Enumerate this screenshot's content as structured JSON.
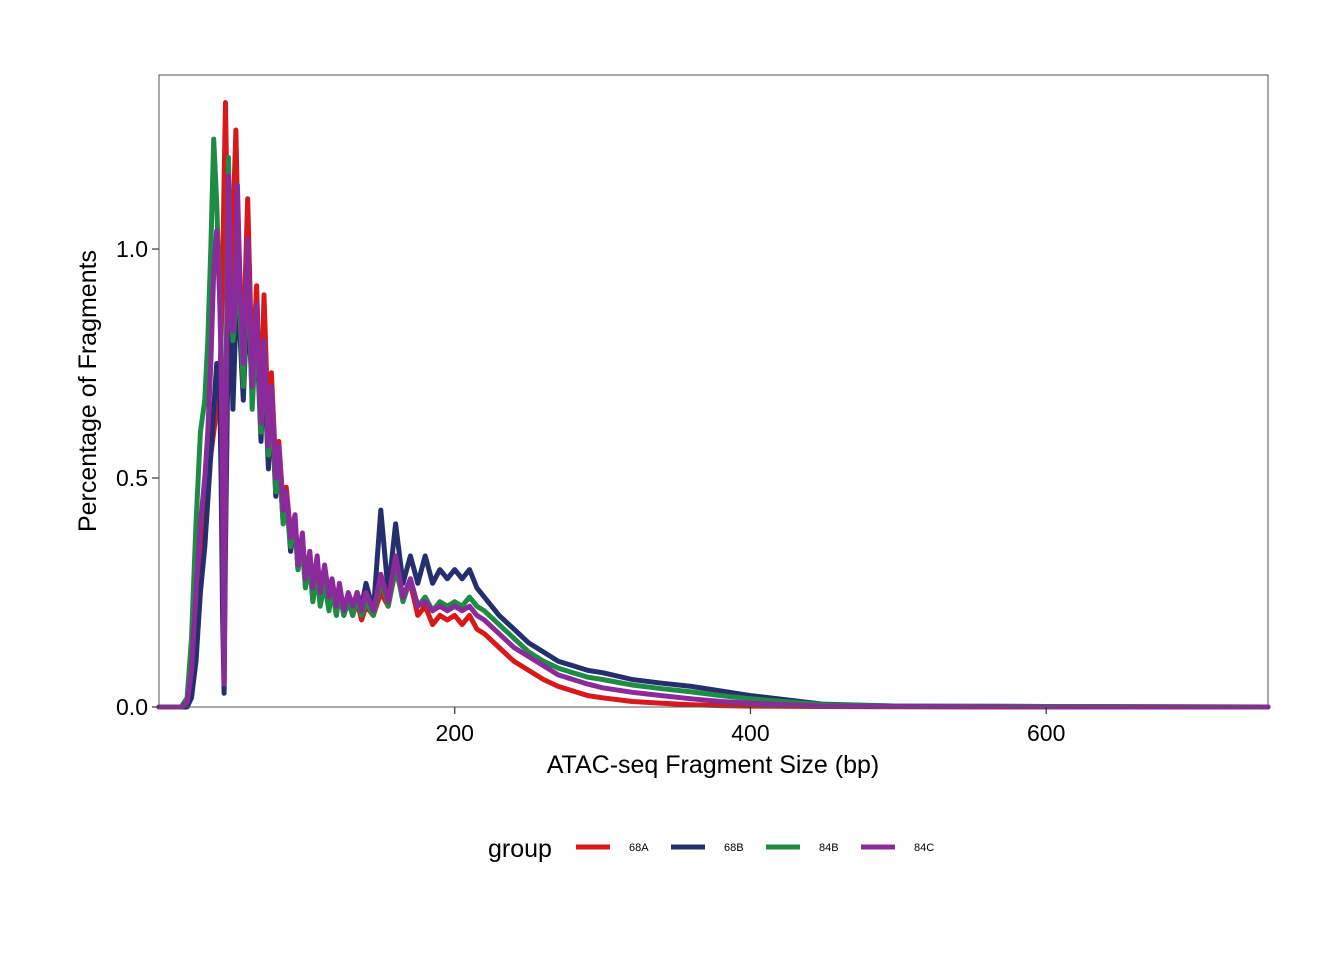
{
  "chart_data": {
    "type": "line",
    "title": "",
    "xlabel": "ATAC-seq Fragment Size (bp)",
    "ylabel": "Percentage of Fragments",
    "xlim": [
      0,
      750
    ],
    "ylim": [
      0,
      1.38
    ],
    "xticks": [
      200,
      400,
      600
    ],
    "xtick_labels": [
      "200",
      "400",
      "600"
    ],
    "yticks": [
      0.0,
      0.5,
      1.0
    ],
    "ytick_labels": [
      "0.0",
      "0.5",
      "1.0"
    ],
    "grid": false,
    "legend": {
      "title": "group",
      "position": "bottom"
    },
    "series": [
      {
        "name": "68A",
        "color": "#D7191C",
        "x": [
          0,
          15,
          19,
          22,
          25,
          28,
          31,
          33,
          35,
          37,
          39,
          41,
          42,
          43,
          44,
          45,
          46,
          47,
          48,
          49,
          50,
          52,
          53,
          55,
          57,
          58,
          60,
          63,
          66,
          69,
          71,
          74,
          76,
          79,
          81,
          84,
          86,
          89,
          92,
          94,
          97,
          99,
          102,
          104,
          107,
          109,
          112,
          115,
          117,
          120,
          122,
          125,
          128,
          131,
          134,
          137,
          140,
          145,
          150,
          155,
          160,
          165,
          170,
          175,
          180,
          185,
          190,
          195,
          200,
          205,
          210,
          215,
          220,
          230,
          240,
          250,
          260,
          270,
          280,
          290,
          300,
          320,
          340,
          360,
          380,
          400,
          450,
          500,
          600,
          750
        ],
        "y": [
          0,
          0,
          0.01,
          0.06,
          0.2,
          0.35,
          0.45,
          0.5,
          0.55,
          0.6,
          0.65,
          0.7,
          0.8,
          0.95,
          1.15,
          1.32,
          1.1,
          0.9,
          0.82,
          0.9,
          1.05,
          1.26,
          1.1,
          0.9,
          0.8,
          0.9,
          1.11,
          0.72,
          0.92,
          0.62,
          0.9,
          0.6,
          0.73,
          0.52,
          0.58,
          0.44,
          0.48,
          0.38,
          0.41,
          0.32,
          0.36,
          0.28,
          0.33,
          0.25,
          0.3,
          0.23,
          0.27,
          0.22,
          0.26,
          0.2,
          0.26,
          0.21,
          0.24,
          0.2,
          0.23,
          0.19,
          0.22,
          0.2,
          0.25,
          0.22,
          0.3,
          0.24,
          0.27,
          0.2,
          0.22,
          0.18,
          0.2,
          0.19,
          0.2,
          0.18,
          0.2,
          0.17,
          0.16,
          0.13,
          0.1,
          0.08,
          0.06,
          0.045,
          0.035,
          0.025,
          0.02,
          0.012,
          0.008,
          0.005,
          0.003,
          0.002,
          0.001,
          0.0005,
          0,
          0
        ]
      },
      {
        "name": "68B",
        "color": "#262F6E",
        "x": [
          0,
          15,
          19,
          22,
          25,
          28,
          31,
          33,
          35,
          37,
          39,
          41,
          42,
          43,
          44,
          45,
          46,
          47,
          48,
          49,
          50,
          52,
          53,
          55,
          57,
          58,
          60,
          63,
          66,
          69,
          71,
          74,
          76,
          79,
          81,
          84,
          86,
          89,
          92,
          94,
          97,
          99,
          102,
          104,
          107,
          109,
          112,
          115,
          117,
          120,
          122,
          125,
          128,
          131,
          134,
          137,
          140,
          145,
          150,
          155,
          160,
          165,
          170,
          175,
          180,
          185,
          190,
          195,
          200,
          205,
          210,
          215,
          220,
          230,
          240,
          250,
          260,
          270,
          280,
          290,
          300,
          320,
          340,
          360,
          380,
          400,
          450,
          500,
          600,
          750
        ],
        "y": [
          0,
          0,
          0,
          0.02,
          0.1,
          0.25,
          0.35,
          0.45,
          0.55,
          0.65,
          0.75,
          0.7,
          0.5,
          0.2,
          0.03,
          0.35,
          0.6,
          0.85,
          0.92,
          0.8,
          0.65,
          0.85,
          0.93,
          0.8,
          0.67,
          0.75,
          0.9,
          0.68,
          0.82,
          0.58,
          0.75,
          0.52,
          0.66,
          0.46,
          0.56,
          0.4,
          0.47,
          0.34,
          0.4,
          0.3,
          0.36,
          0.27,
          0.33,
          0.25,
          0.3,
          0.24,
          0.29,
          0.22,
          0.27,
          0.21,
          0.26,
          0.2,
          0.24,
          0.2,
          0.25,
          0.22,
          0.27,
          0.21,
          0.43,
          0.25,
          0.4,
          0.27,
          0.33,
          0.27,
          0.33,
          0.27,
          0.3,
          0.28,
          0.3,
          0.28,
          0.3,
          0.26,
          0.24,
          0.2,
          0.17,
          0.14,
          0.12,
          0.1,
          0.09,
          0.08,
          0.075,
          0.06,
          0.052,
          0.045,
          0.035,
          0.025,
          0.006,
          0.002,
          0.001,
          0
        ]
      },
      {
        "name": "84B",
        "color": "#1E8C45",
        "x": [
          0,
          15,
          19,
          22,
          25,
          28,
          31,
          33,
          35,
          37,
          39,
          41,
          42,
          43,
          44,
          45,
          46,
          47,
          48,
          49,
          50,
          52,
          53,
          55,
          57,
          58,
          60,
          63,
          66,
          69,
          71,
          74,
          76,
          79,
          81,
          84,
          86,
          89,
          92,
          94,
          97,
          99,
          102,
          104,
          107,
          109,
          112,
          115,
          117,
          120,
          122,
          125,
          128,
          131,
          134,
          137,
          140,
          145,
          150,
          155,
          160,
          165,
          170,
          175,
          180,
          185,
          190,
          195,
          200,
          205,
          210,
          215,
          220,
          230,
          240,
          250,
          260,
          270,
          280,
          290,
          300,
          320,
          340,
          360,
          380,
          400,
          450,
          500,
          600,
          750
        ],
        "y": [
          0,
          0,
          0.02,
          0.15,
          0.4,
          0.6,
          0.67,
          0.8,
          1.0,
          1.24,
          1.1,
          0.9,
          0.8,
          0.5,
          0.05,
          0.6,
          0.9,
          1.2,
          1.0,
          0.85,
          0.8,
          0.88,
          1.06,
          0.85,
          0.7,
          0.8,
          1.0,
          0.65,
          0.85,
          0.6,
          0.8,
          0.55,
          0.67,
          0.47,
          0.55,
          0.4,
          0.46,
          0.35,
          0.4,
          0.3,
          0.35,
          0.26,
          0.31,
          0.23,
          0.29,
          0.22,
          0.27,
          0.21,
          0.26,
          0.2,
          0.25,
          0.2,
          0.23,
          0.2,
          0.24,
          0.2,
          0.23,
          0.2,
          0.28,
          0.22,
          0.31,
          0.23,
          0.28,
          0.22,
          0.24,
          0.21,
          0.23,
          0.22,
          0.23,
          0.22,
          0.24,
          0.22,
          0.21,
          0.18,
          0.15,
          0.12,
          0.1,
          0.085,
          0.075,
          0.065,
          0.06,
          0.048,
          0.04,
          0.033,
          0.025,
          0.018,
          0.005,
          0.002,
          0.001,
          0
        ]
      },
      {
        "name": "84C",
        "color": "#8B2A9B",
        "x": [
          0,
          15,
          19,
          22,
          25,
          28,
          31,
          33,
          35,
          37,
          39,
          41,
          42,
          43,
          44,
          45,
          46,
          47,
          48,
          49,
          50,
          52,
          53,
          55,
          57,
          58,
          60,
          63,
          66,
          69,
          71,
          74,
          76,
          79,
          81,
          84,
          86,
          89,
          92,
          94,
          97,
          99,
          102,
          104,
          107,
          109,
          112,
          115,
          117,
          120,
          122,
          125,
          128,
          131,
          134,
          137,
          140,
          145,
          150,
          155,
          160,
          165,
          170,
          175,
          180,
          185,
          190,
          195,
          200,
          205,
          210,
          215,
          220,
          230,
          240,
          250,
          260,
          270,
          280,
          290,
          300,
          320,
          340,
          360,
          380,
          400,
          450,
          500,
          600,
          750
        ],
        "y": [
          0,
          0,
          0.01,
          0.08,
          0.25,
          0.4,
          0.5,
          0.6,
          0.75,
          0.95,
          1.04,
          0.9,
          0.75,
          0.45,
          0.05,
          0.5,
          0.85,
          1.16,
          1.0,
          0.85,
          0.82,
          0.9,
          1.14,
          0.9,
          0.75,
          0.82,
          1.02,
          0.7,
          0.88,
          0.62,
          0.8,
          0.57,
          0.7,
          0.5,
          0.57,
          0.43,
          0.47,
          0.37,
          0.42,
          0.31,
          0.38,
          0.28,
          0.34,
          0.26,
          0.33,
          0.25,
          0.31,
          0.24,
          0.28,
          0.22,
          0.27,
          0.21,
          0.25,
          0.22,
          0.25,
          0.21,
          0.25,
          0.21,
          0.29,
          0.23,
          0.33,
          0.24,
          0.28,
          0.22,
          0.23,
          0.21,
          0.22,
          0.21,
          0.22,
          0.21,
          0.22,
          0.2,
          0.19,
          0.16,
          0.13,
          0.11,
          0.09,
          0.07,
          0.06,
          0.05,
          0.042,
          0.032,
          0.025,
          0.018,
          0.012,
          0.008,
          0.002,
          0.001,
          0,
          0
        ]
      }
    ]
  }
}
